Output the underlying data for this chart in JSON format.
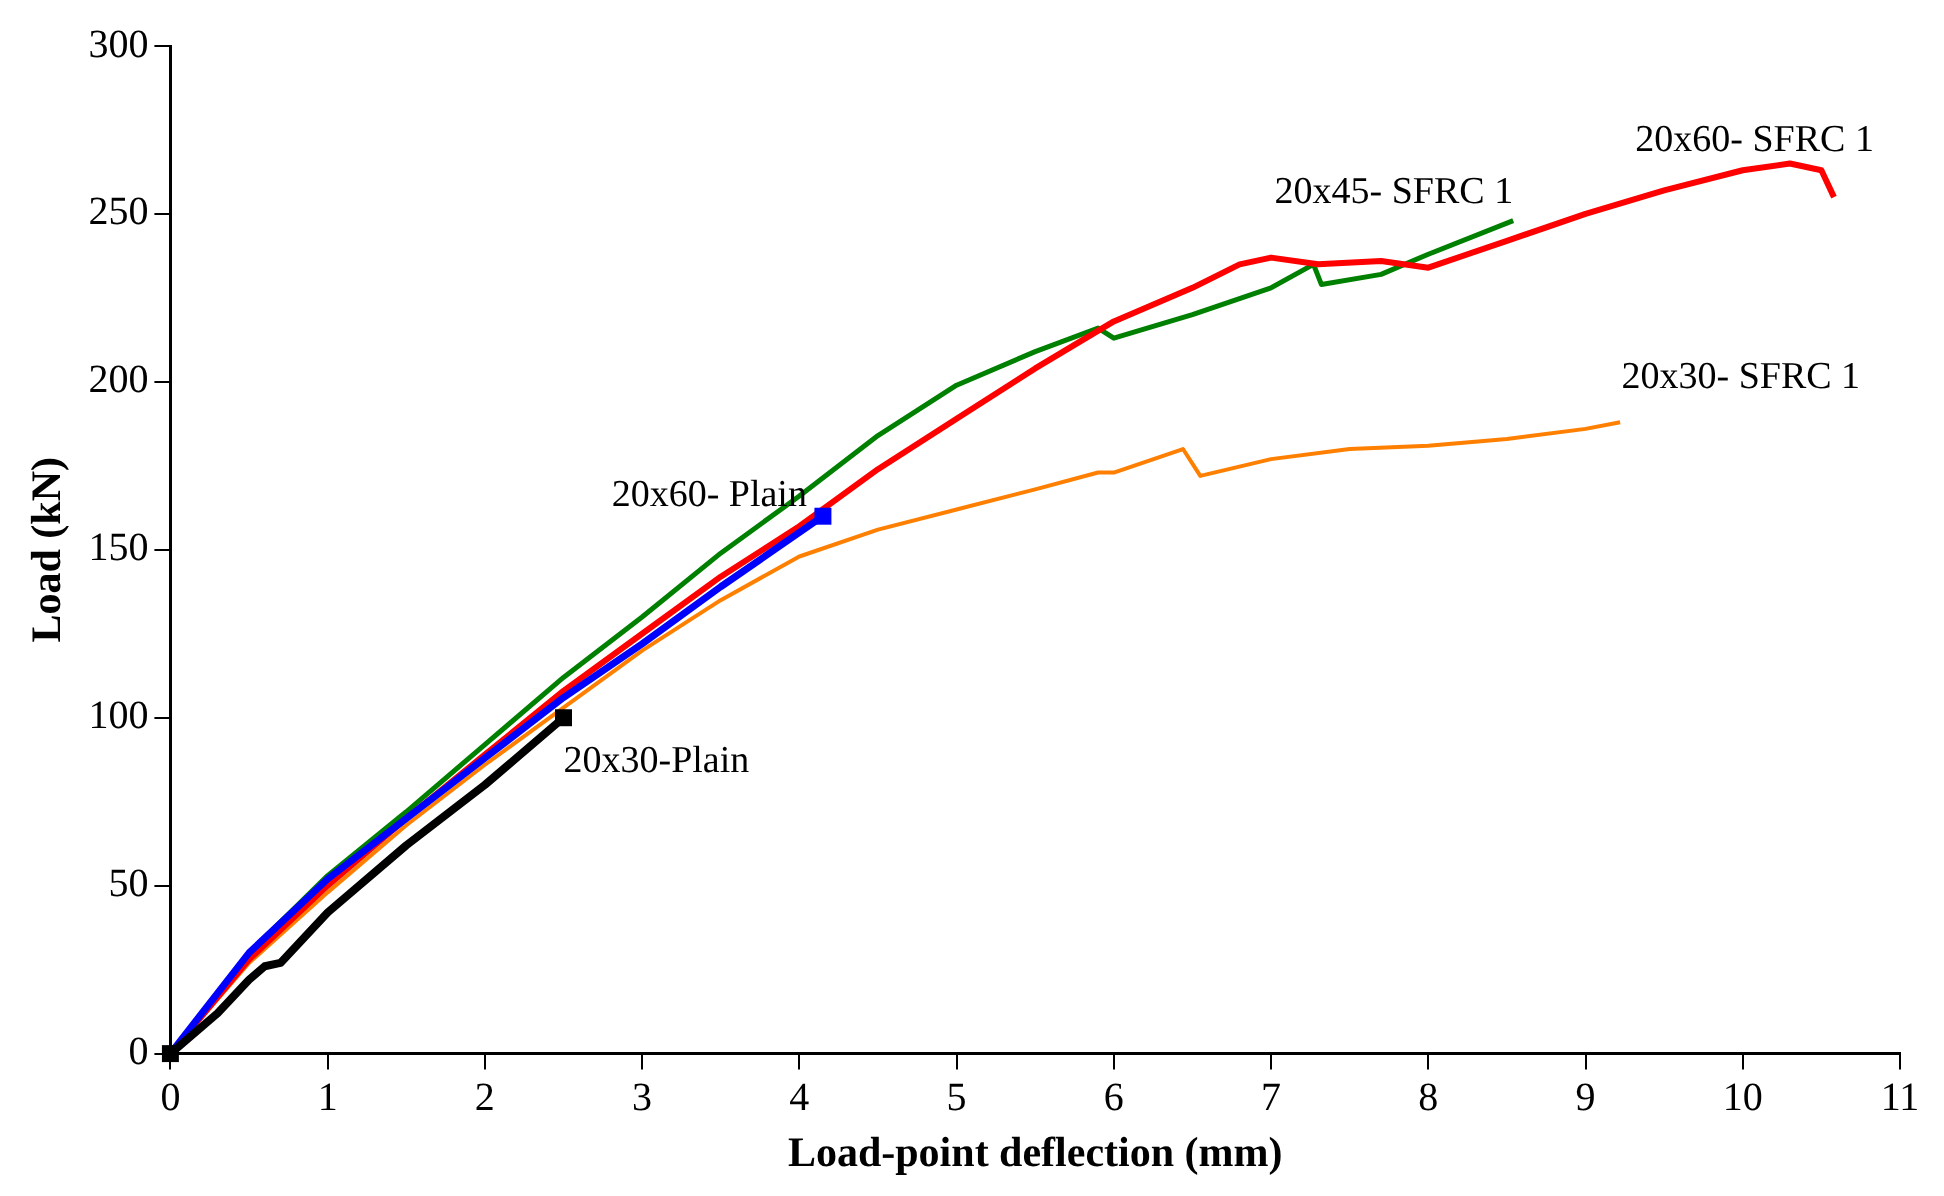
{
  "chart_data": {
    "type": "line",
    "xlabel": "Load-point deflection (mm)",
    "ylabel": "Load (kN)",
    "xlim": [
      0,
      11
    ],
    "xticks": [
      0,
      1,
      2,
      3,
      4,
      5,
      6,
      7,
      8,
      9,
      10,
      11
    ],
    "ylim": [
      0,
      300
    ],
    "yticks": [
      0,
      50,
      100,
      150,
      200,
      250,
      300
    ],
    "grid": false,
    "legend": false,
    "marker": "none",
    "line_style": "solid",
    "series": [
      {
        "name": "20x30-Plain",
        "color": "#000000",
        "x": [
          0,
          0.3,
          0.5,
          0.6,
          0.7,
          1,
          1.5,
          2,
          2.5
        ],
        "values": [
          0,
          12,
          22,
          26,
          27,
          42,
          62,
          80,
          100
        ]
      },
      {
        "name": "20x60- Plain",
        "color": "#0000ff",
        "x": [
          0,
          0.5,
          1,
          1.5,
          2,
          2.5,
          3,
          3.5,
          4.15
        ],
        "values": [
          0,
          30,
          52,
          70,
          88,
          106,
          122,
          139,
          160
        ]
      },
      {
        "name": "20x60- SFRC 1",
        "color": "#ff0000",
        "x": [
          0,
          0.5,
          1,
          1.5,
          2,
          2.5,
          3,
          3.5,
          4,
          4.5,
          5,
          5.5,
          6,
          6.5,
          6.8,
          7,
          7.3,
          7.7,
          8,
          8.5,
          9,
          9.5,
          10,
          10.3,
          10.5,
          10.58
        ],
        "values": [
          0,
          28,
          50,
          70,
          89,
          108,
          125,
          142,
          157,
          174,
          189,
          204,
          218,
          228,
          235,
          237,
          235,
          236,
          234,
          242,
          250,
          257,
          263,
          265,
          263,
          255
        ]
      },
      {
        "name": "20x45- SFRC 1",
        "color": "#008000",
        "x": [
          0,
          0.5,
          1,
          1.5,
          2,
          2.5,
          3,
          3.5,
          4,
          4.5,
          5,
          5.5,
          5.9,
          6,
          6.5,
          7,
          7.27,
          7.32,
          7.7,
          8,
          8.54
        ],
        "values": [
          0,
          30,
          53,
          72,
          92,
          112,
          130,
          149,
          166,
          184,
          199,
          209,
          216,
          213,
          220,
          228,
          235,
          229,
          232,
          238,
          248
        ]
      },
      {
        "name": "20x30- SFRC 1",
        "color": "#ff7f00",
        "x": [
          0,
          0.5,
          1,
          1.5,
          2,
          2.5,
          3,
          3.5,
          4,
          4.5,
          5,
          5.5,
          5.9,
          6,
          6.44,
          6.55,
          7,
          7.5,
          8,
          8.5,
          9,
          9.22
        ],
        "values": [
          0,
          27,
          48,
          68,
          86,
          103,
          120,
          135,
          148,
          156,
          162,
          168,
          173,
          173,
          180,
          172,
          177,
          180,
          181,
          183,
          186,
          188
        ]
      },
      {
        "type": "scatter",
        "marker": "square",
        "color": "#000000",
        "x": [
          0,
          2.5
        ],
        "values": [
          0,
          100
        ]
      },
      {
        "type": "scatter",
        "marker": "square",
        "color": "#0000ff",
        "x": [
          4.15
        ],
        "values": [
          160
        ]
      }
    ]
  }
}
